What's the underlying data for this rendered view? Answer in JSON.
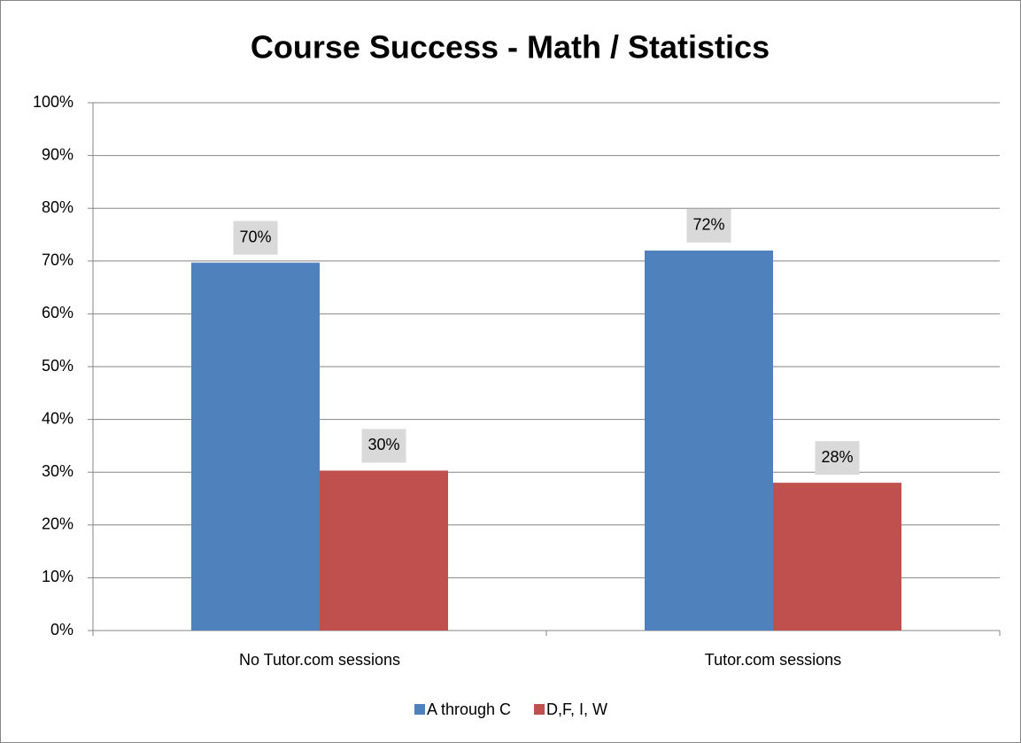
{
  "chart_data": {
    "type": "bar",
    "title": "Course Success - Math / Statistics",
    "categories": [
      "No Tutor.com sessions",
      "Tutor.com sessions"
    ],
    "series": [
      {
        "name": "A through C",
        "color": "#4f81bd",
        "values": [
          69.7,
          72.0
        ],
        "value_labels": [
          "70%",
          "72%"
        ]
      },
      {
        "name": "D,F, I, W",
        "color": "#c0504d",
        "values": [
          30.3,
          28.0
        ],
        "value_labels": [
          "30%",
          "28%"
        ]
      }
    ],
    "ylim": [
      0,
      100
    ],
    "yticks": [
      {
        "value": 0,
        "label": "0%"
      },
      {
        "value": 10,
        "label": "10%"
      },
      {
        "value": 20,
        "label": "20%"
      },
      {
        "value": 30,
        "label": "30%"
      },
      {
        "value": 40,
        "label": "40%"
      },
      {
        "value": 50,
        "label": "50%"
      },
      {
        "value": 60,
        "label": "60%"
      },
      {
        "value": 70,
        "label": "70%"
      },
      {
        "value": 80,
        "label": "80%"
      },
      {
        "value": 90,
        "label": "90%"
      },
      {
        "value": 100,
        "label": "100%"
      }
    ],
    "grid": true,
    "legend": "bottom"
  }
}
